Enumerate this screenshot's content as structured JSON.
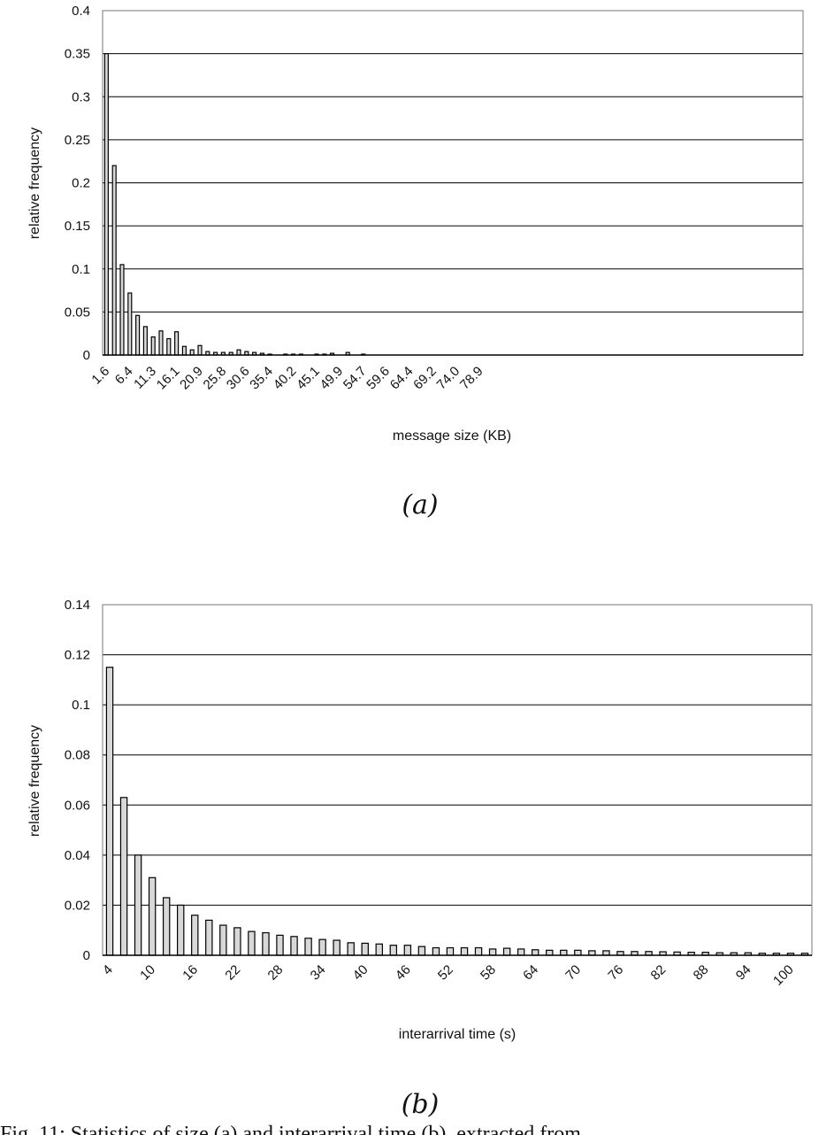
{
  "chart_data": [
    {
      "type": "bar",
      "ylabel": "relative frequency",
      "xlabel": "message size (KB)",
      "panel_label": "(a)",
      "ylim": [
        0,
        0.4
      ],
      "yticks": [
        "0",
        "0.05",
        "0.1",
        "0.15",
        "0.2",
        "0.25",
        "0.3",
        "0.35",
        "0.4"
      ],
      "xtick_labels": [
        "1.6",
        "6.4",
        "11.3",
        "16.1",
        "20.9",
        "25.8",
        "30.6",
        "35.4",
        "40.2",
        "45.1",
        "49.9",
        "54.7",
        "59.6",
        "64.4",
        "69.2",
        "74.0",
        "78.9"
      ],
      "grid": true,
      "values": [
        0.35,
        0.22,
        0.105,
        0.072,
        0.046,
        0.033,
        0.021,
        0.028,
        0.019,
        0.027,
        0.01,
        0.006,
        0.011,
        0.004,
        0.003,
        0.003,
        0.003,
        0.006,
        0.004,
        0.003,
        0.002,
        0.001,
        0.0,
        0.001,
        0.001,
        0.001,
        0.0,
        0.001,
        0.001,
        0.002,
        0.0,
        0.003,
        0.0,
        0.001,
        0.0,
        0.0,
        0.0,
        0.0,
        0.0,
        0.0,
        0.0,
        0.0,
        0.0,
        0.0,
        0.0,
        0.0,
        0.0,
        0.0,
        0.0,
        0.0,
        0.0,
        0.0,
        0.0,
        0.0,
        0.0,
        0.0,
        0.0,
        0.0,
        0.0,
        0.0,
        0.0,
        0.0,
        0.0,
        0.0,
        0.0,
        0.0,
        0.0,
        0.0,
        0.0,
        0.0,
        0.0,
        0.0,
        0.0,
        0.0,
        0.0,
        0.0,
        0.0,
        0.0,
        0.0,
        0.0,
        0.0,
        0.0,
        0.0,
        0.0,
        0.0,
        0.0,
        0.0,
        0.0,
        0.0,
        0.0
      ]
    },
    {
      "type": "bar",
      "ylabel": "relative frequency",
      "xlabel": "interarrival time (s)",
      "panel_label": "(b)",
      "ylim": [
        0,
        0.14
      ],
      "yticks": [
        "0",
        "0.02",
        "0.04",
        "0.06",
        "0.08",
        "0.1",
        "0.12",
        "0.14"
      ],
      "xtick_labels": [
        "4",
        "10",
        "16",
        "22",
        "28",
        "34",
        "40",
        "46",
        "52",
        "58",
        "64",
        "70",
        "76",
        "82",
        "88",
        "94",
        "100"
      ],
      "grid": true,
      "values": [
        0.115,
        0.063,
        0.04,
        0.031,
        0.023,
        0.02,
        0.016,
        0.014,
        0.012,
        0.011,
        0.0095,
        0.009,
        0.008,
        0.0075,
        0.0068,
        0.0063,
        0.006,
        0.005,
        0.0048,
        0.0045,
        0.004,
        0.004,
        0.0035,
        0.003,
        0.003,
        0.003,
        0.003,
        0.0025,
        0.0028,
        0.0025,
        0.0022,
        0.002,
        0.002,
        0.002,
        0.0018,
        0.0018,
        0.0015,
        0.0015,
        0.0015,
        0.0014,
        0.0013,
        0.0012,
        0.0012,
        0.001,
        0.001,
        0.001,
        0.0008,
        0.0008,
        0.0008,
        0.0008
      ]
    }
  ],
  "caption": "Fig. 11: Statistics of size (a) and interarrival time (b), extracted from"
}
